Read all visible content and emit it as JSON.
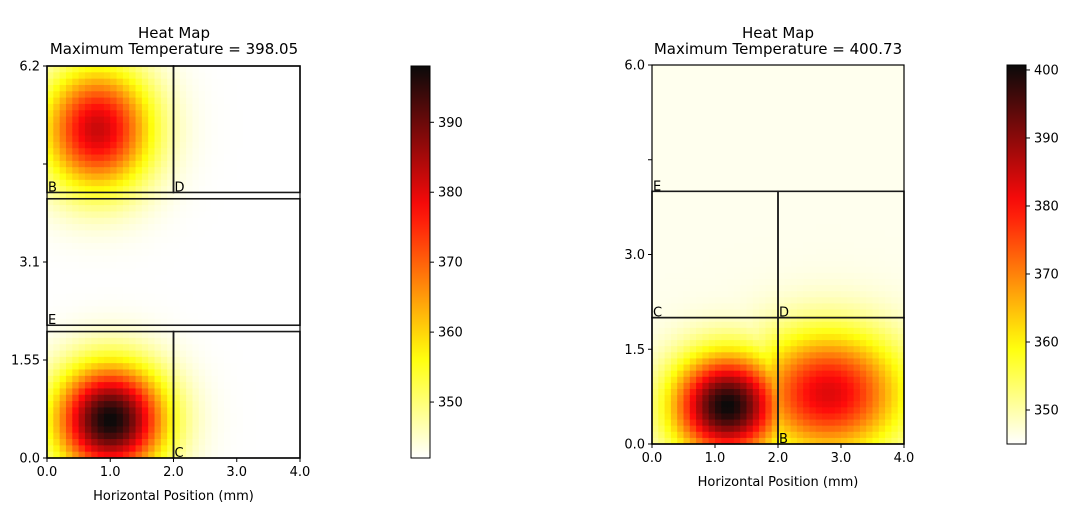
{
  "chart_data": [
    {
      "type": "heatmap",
      "title": "Heat Map",
      "subtitle": "Maximum Temperature = 398.05",
      "xlabel": "Horizontal Position (mm)",
      "ylabel": "",
      "xlim": [
        0.0,
        4.0
      ],
      "ylim": [
        0.0,
        6.2
      ],
      "xticks": [
        "0.0",
        "1.0",
        "2.0",
        "3.0",
        "4.0"
      ],
      "yticks": [
        {
          "value": 0.0,
          "label": "0.0"
        },
        {
          "value": 1.55,
          "label": "1.55"
        },
        {
          "value": 3.1,
          "label": "3.1"
        },
        {
          "value": 4.65,
          "label": ""
        },
        {
          "value": 6.2,
          "label": "6.2"
        }
      ],
      "colorbar": {
        "range": [
          342,
          398.05
        ],
        "ticks": [
          "350",
          "360",
          "370",
          "380",
          "390"
        ],
        "colormap": "hot_r"
      },
      "max_temperature": 398.05,
      "regions": [
        {
          "x0": 0.0,
          "x1": 2.0,
          "y0": 0.0,
          "y1": 2.0
        },
        {
          "x0": 2.0,
          "x1": 4.0,
          "y0": 0.0,
          "y1": 2.0
        },
        {
          "x0": 0.0,
          "x1": 4.0,
          "y0": 2.1,
          "y1": 4.1
        },
        {
          "x0": 0.0,
          "x1": 2.0,
          "y0": 4.2,
          "y1": 6.2
        },
        {
          "x0": 2.0,
          "x1": 4.0,
          "y0": 4.2,
          "y1": 6.2
        }
      ],
      "labels": [
        {
          "text": "B",
          "x": 0.0,
          "y": 4.2
        },
        {
          "text": "D",
          "x": 2.0,
          "y": 4.2
        },
        {
          "text": "E",
          "x": 0.0,
          "y": 2.1
        },
        {
          "text": "C",
          "x": 2.0,
          "y": 0.0
        }
      ],
      "sources": [
        {
          "x": 1.0,
          "y": 0.6,
          "t": 398.05,
          "sx": 0.8,
          "sy": 0.8
        },
        {
          "x": 0.8,
          "y": 5.2,
          "t": 382,
          "sx": 0.8,
          "sy": 0.9
        }
      ],
      "background": 342
    },
    {
      "type": "heatmap",
      "title": "Heat Map",
      "subtitle": "Maximum Temperature = 400.73",
      "xlabel": "Horizontal Position (mm)",
      "ylabel": "",
      "xlim": [
        0.0,
        4.0
      ],
      "ylim": [
        0.0,
        6.0
      ],
      "xticks": [
        "0.0",
        "1.0",
        "2.0",
        "3.0",
        "4.0"
      ],
      "yticks": [
        {
          "value": 0.0,
          "label": "0.0"
        },
        {
          "value": 1.5,
          "label": "1.5"
        },
        {
          "value": 3.0,
          "label": "3.0"
        },
        {
          "value": 4.5,
          "label": ""
        },
        {
          "value": 6.0,
          "label": "6.0"
        }
      ],
      "colorbar": {
        "range": [
          345,
          400.73
        ],
        "ticks": [
          "350",
          "360",
          "370",
          "380",
          "390",
          "400"
        ],
        "colormap": "hot_r"
      },
      "max_temperature": 400.73,
      "regions": [
        {
          "x0": 0.0,
          "x1": 2.0,
          "y0": 0.0,
          "y1": 2.0
        },
        {
          "x0": 2.0,
          "x1": 4.0,
          "y0": 0.0,
          "y1": 2.0
        },
        {
          "x0": 0.0,
          "x1": 2.0,
          "y0": 2.0,
          "y1": 4.0
        },
        {
          "x0": 2.0,
          "x1": 4.0,
          "y0": 2.0,
          "y1": 4.0
        }
      ],
      "labels": [
        {
          "text": "E",
          "x": 0.0,
          "y": 4.0
        },
        {
          "text": "C",
          "x": 0.0,
          "y": 2.0
        },
        {
          "text": "D",
          "x": 2.0,
          "y": 2.0
        },
        {
          "text": "B",
          "x": 2.0,
          "y": 0.0
        }
      ],
      "sources": [
        {
          "x": 1.2,
          "y": 0.6,
          "t": 400.73,
          "sx": 0.8,
          "sy": 0.75
        },
        {
          "x": 2.8,
          "y": 0.8,
          "t": 383,
          "sx": 1.1,
          "sy": 0.9
        }
      ],
      "background": 346
    }
  ]
}
